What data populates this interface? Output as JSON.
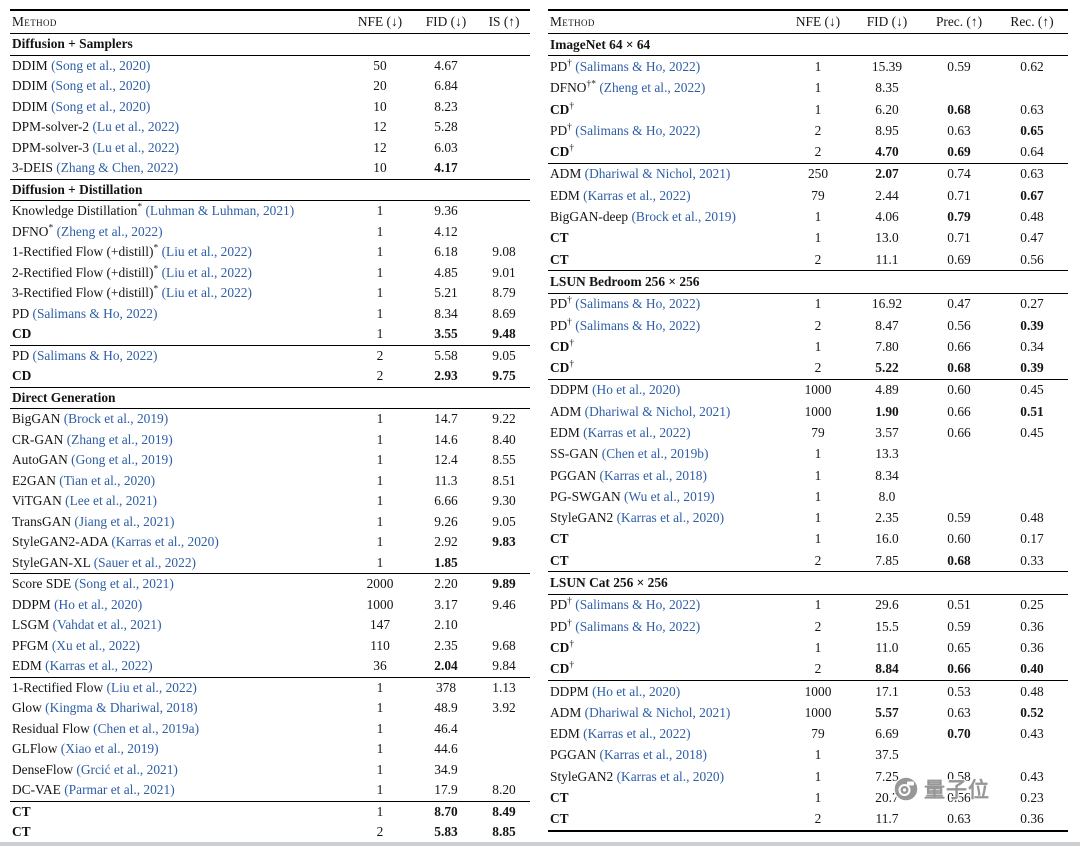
{
  "colors": {
    "citation": "#2e5ea7",
    "text": "#141414"
  },
  "watermark": {
    "text": "量子位",
    "icon": "qbitai-camera-logo",
    "color": "#8f8f8f"
  },
  "left": {
    "headers": {
      "method": "Method",
      "cols": [
        "NFE (↓)",
        "FID (↓)",
        "IS (↑)"
      ]
    },
    "sections": [
      {
        "title": "Diffusion + Samplers",
        "groups": [
          [
            {
              "n": "DDIM",
              "c": "Song et al., 2020",
              "v": [
                "50",
                "4.67",
                ""
              ]
            },
            {
              "n": "DDIM",
              "c": "Song et al., 2020",
              "v": [
                "20",
                "6.84",
                ""
              ]
            },
            {
              "n": "DDIM",
              "c": "Song et al., 2020",
              "v": [
                "10",
                "8.23",
                ""
              ]
            },
            {
              "n": "DPM-solver-2",
              "c": "Lu et al., 2022",
              "v": [
                "12",
                "5.28",
                ""
              ]
            },
            {
              "n": "DPM-solver-3",
              "c": "Lu et al., 2022",
              "v": [
                "12",
                "6.03",
                ""
              ]
            },
            {
              "n": "3-DEIS",
              "c": "Zhang & Chen, 2022",
              "v": [
                "10",
                "4.17",
                ""
              ],
              "b": [
                1
              ]
            }
          ]
        ]
      },
      {
        "title": "Diffusion + Distillation",
        "groups": [
          [
            {
              "n": "Knowledge Distillation",
              "s": "*",
              "c": "Luhman & Luhman, 2021",
              "v": [
                "1",
                "9.36",
                ""
              ]
            },
            {
              "n": "DFNO",
              "s": "*",
              "c": "Zheng et al., 2022",
              "v": [
                "1",
                "4.12",
                ""
              ]
            },
            {
              "n": "1-Rectified Flow (+distill)",
              "s": "*",
              "c": "Liu et al., 2022",
              "v": [
                "1",
                "6.18",
                "9.08"
              ]
            },
            {
              "n": "2-Rectified Flow (+distill)",
              "s": "*",
              "c": "Liu et al., 2022",
              "v": [
                "1",
                "4.85",
                "9.01"
              ]
            },
            {
              "n": "3-Rectified Flow (+distill)",
              "s": "*",
              "c": "Liu et al., 2022",
              "v": [
                "1",
                "5.21",
                "8.79"
              ]
            },
            {
              "n": "PD",
              "c": "Salimans & Ho, 2022",
              "v": [
                "1",
                "8.34",
                "8.69"
              ]
            },
            {
              "n": "CD",
              "nb": 1,
              "v": [
                "1",
                "3.55",
                "9.48"
              ],
              "b": [
                1,
                2
              ]
            }
          ],
          [
            {
              "n": "PD",
              "c": "Salimans & Ho, 2022",
              "v": [
                "2",
                "5.58",
                "9.05"
              ]
            },
            {
              "n": "CD",
              "nb": 1,
              "v": [
                "2",
                "2.93",
                "9.75"
              ],
              "b": [
                1,
                2
              ]
            }
          ]
        ]
      },
      {
        "title": "Direct Generation",
        "groups": [
          [
            {
              "n": "BigGAN",
              "c": "Brock et al., 2019",
              "v": [
                "1",
                "14.7",
                "9.22"
              ]
            },
            {
              "n": "CR-GAN",
              "c": "Zhang et al., 2019",
              "v": [
                "1",
                "14.6",
                "8.40"
              ]
            },
            {
              "n": "AutoGAN",
              "c": "Gong et al., 2019",
              "v": [
                "1",
                "12.4",
                "8.55"
              ]
            },
            {
              "n": "E2GAN",
              "c": "Tian et al., 2020",
              "v": [
                "1",
                "11.3",
                "8.51"
              ]
            },
            {
              "n": "ViTGAN",
              "c": "Lee et al., 2021",
              "v": [
                "1",
                "6.66",
                "9.30"
              ]
            },
            {
              "n": "TransGAN",
              "c": "Jiang et al., 2021",
              "v": [
                "1",
                "9.26",
                "9.05"
              ]
            },
            {
              "n": "StyleGAN2-ADA",
              "c": "Karras et al., 2020",
              "v": [
                "1",
                "2.92",
                "9.83"
              ],
              "b": [
                2
              ]
            },
            {
              "n": "StyleGAN-XL",
              "c": "Sauer et al., 2022",
              "v": [
                "1",
                "1.85",
                ""
              ],
              "b": [
                1
              ]
            }
          ],
          [
            {
              "n": "Score SDE",
              "c": "Song et al., 2021",
              "v": [
                "2000",
                "2.20",
                "9.89"
              ],
              "b": [
                2
              ]
            },
            {
              "n": "DDPM",
              "c": "Ho et al., 2020",
              "v": [
                "1000",
                "3.17",
                "9.46"
              ]
            },
            {
              "n": "LSGM",
              "c": "Vahdat et al., 2021",
              "v": [
                "147",
                "2.10",
                ""
              ]
            },
            {
              "n": "PFGM",
              "c": "Xu et al., 2022",
              "v": [
                "110",
                "2.35",
                "9.68"
              ]
            },
            {
              "n": "EDM",
              "c": "Karras et al., 2022",
              "v": [
                "36",
                "2.04",
                "9.84"
              ],
              "b": [
                1
              ]
            }
          ],
          [
            {
              "n": "1-Rectified Flow",
              "c": "Liu et al., 2022",
              "v": [
                "1",
                "378",
                "1.13"
              ]
            },
            {
              "n": "Glow",
              "c": "Kingma & Dhariwal, 2018",
              "v": [
                "1",
                "48.9",
                "3.92"
              ]
            },
            {
              "n": "Residual Flow",
              "c": "Chen et al., 2019a",
              "v": [
                "1",
                "46.4",
                ""
              ]
            },
            {
              "n": "GLFlow",
              "c": "Xiao et al., 2019",
              "v": [
                "1",
                "44.6",
                ""
              ]
            },
            {
              "n": "DenseFlow",
              "c": "Grcić et al., 2021",
              "v": [
                "1",
                "34.9",
                ""
              ]
            },
            {
              "n": "DC-VAE",
              "c": "Parmar et al., 2021",
              "v": [
                "1",
                "17.9",
                "8.20"
              ]
            }
          ],
          [
            {
              "n": "CT",
              "nb": 1,
              "v": [
                "1",
                "8.70",
                "8.49"
              ],
              "b": [
                1,
                2
              ]
            },
            {
              "n": "CT",
              "nb": 1,
              "v": [
                "2",
                "5.83",
                "8.85"
              ],
              "b": [
                1,
                2
              ]
            }
          ]
        ]
      }
    ]
  },
  "right": {
    "headers": {
      "method": "Method",
      "cols": [
        "NFE (↓)",
        "FID (↓)",
        "Prec. (↑)",
        "Rec. (↑)"
      ]
    },
    "sections": [
      {
        "title": "ImageNet 64 × 64",
        "groups": [
          [
            {
              "n": "PD",
              "s": "†",
              "c": "Salimans & Ho, 2022",
              "v": [
                "1",
                "15.39",
                "0.59",
                "0.62"
              ]
            },
            {
              "n": "DFNO",
              "s": "†*",
              "c": "Zheng et al., 2022",
              "v": [
                "1",
                "8.35",
                "",
                ""
              ]
            },
            {
              "n": "CD",
              "s": "†",
              "nb": 1,
              "v": [
                "1",
                "6.20",
                "0.68",
                "0.63"
              ],
              "b": [
                2
              ]
            },
            {
              "n": "PD",
              "s": "†",
              "c": "Salimans & Ho, 2022",
              "v": [
                "2",
                "8.95",
                "0.63",
                "0.65"
              ],
              "b": [
                3
              ]
            },
            {
              "n": "CD",
              "s": "†",
              "nb": 1,
              "v": [
                "2",
                "4.70",
                "0.69",
                "0.64"
              ],
              "b": [
                1,
                2
              ]
            }
          ],
          [
            {
              "n": "ADM",
              "c": "Dhariwal & Nichol, 2021",
              "v": [
                "250",
                "2.07",
                "0.74",
                "0.63"
              ],
              "b": [
                1
              ]
            },
            {
              "n": "EDM",
              "c": "Karras et al., 2022",
              "v": [
                "79",
                "2.44",
                "0.71",
                "0.67"
              ],
              "b": [
                3
              ]
            },
            {
              "n": "BigGAN-deep",
              "c": "Brock et al., 2019",
              "v": [
                "1",
                "4.06",
                "0.79",
                "0.48"
              ],
              "b": [
                2
              ]
            },
            {
              "n": "CT",
              "nb": 1,
              "v": [
                "1",
                "13.0",
                "0.71",
                "0.47"
              ]
            },
            {
              "n": "CT",
              "nb": 1,
              "v": [
                "2",
                "11.1",
                "0.69",
                "0.56"
              ]
            }
          ]
        ]
      },
      {
        "title": "LSUN Bedroom 256 × 256",
        "groups": [
          [
            {
              "n": "PD",
              "s": "†",
              "c": "Salimans & Ho, 2022",
              "v": [
                "1",
                "16.92",
                "0.47",
                "0.27"
              ]
            },
            {
              "n": "PD",
              "s": "†",
              "c": "Salimans & Ho, 2022",
              "v": [
                "2",
                "8.47",
                "0.56",
                "0.39"
              ],
              "b": [
                3
              ]
            },
            {
              "n": "CD",
              "s": "†",
              "nb": 1,
              "v": [
                "1",
                "7.80",
                "0.66",
                "0.34"
              ]
            },
            {
              "n": "CD",
              "s": "†",
              "nb": 1,
              "v": [
                "2",
                "5.22",
                "0.68",
                "0.39"
              ],
              "b": [
                1,
                2,
                3
              ]
            }
          ],
          [
            {
              "n": "DDPM",
              "c": "Ho et al., 2020",
              "v": [
                "1000",
                "4.89",
                "0.60",
                "0.45"
              ]
            },
            {
              "n": "ADM",
              "c": "Dhariwal & Nichol, 2021",
              "v": [
                "1000",
                "1.90",
                "0.66",
                "0.51"
              ],
              "b": [
                1,
                3
              ]
            },
            {
              "n": "EDM",
              "c": "Karras et al., 2022",
              "v": [
                "79",
                "3.57",
                "0.66",
                "0.45"
              ]
            },
            {
              "n": "SS-GAN",
              "c": "Chen et al., 2019b",
              "v": [
                "1",
                "13.3",
                "",
                ""
              ]
            },
            {
              "n": "PGGAN",
              "c": "Karras et al., 2018",
              "v": [
                "1",
                "8.34",
                "",
                ""
              ]
            },
            {
              "n": "PG-SWGAN",
              "c": "Wu et al., 2019",
              "v": [
                "1",
                "8.0",
                "",
                ""
              ]
            },
            {
              "n": "StyleGAN2",
              "c": "Karras et al., 2020",
              "v": [
                "1",
                "2.35",
                "0.59",
                "0.48"
              ]
            },
            {
              "n": "CT",
              "nb": 1,
              "v": [
                "1",
                "16.0",
                "0.60",
                "0.17"
              ]
            },
            {
              "n": "CT",
              "nb": 1,
              "v": [
                "2",
                "7.85",
                "0.68",
                "0.33"
              ],
              "b": [
                2
              ]
            }
          ]
        ]
      },
      {
        "title": "LSUN Cat 256 × 256",
        "groups": [
          [
            {
              "n": "PD",
              "s": "†",
              "c": "Salimans & Ho, 2022",
              "v": [
                "1",
                "29.6",
                "0.51",
                "0.25"
              ]
            },
            {
              "n": "PD",
              "s": "†",
              "c": "Salimans & Ho, 2022",
              "v": [
                "2",
                "15.5",
                "0.59",
                "0.36"
              ]
            },
            {
              "n": "CD",
              "s": "†",
              "nb": 1,
              "v": [
                "1",
                "11.0",
                "0.65",
                "0.36"
              ]
            },
            {
              "n": "CD",
              "s": "†",
              "nb": 1,
              "v": [
                "2",
                "8.84",
                "0.66",
                "0.40"
              ],
              "b": [
                1,
                2,
                3
              ]
            }
          ],
          [
            {
              "n": "DDPM",
              "c": "Ho et al., 2020",
              "v": [
                "1000",
                "17.1",
                "0.53",
                "0.48"
              ]
            },
            {
              "n": "ADM",
              "c": "Dhariwal & Nichol, 2021",
              "v": [
                "1000",
                "5.57",
                "0.63",
                "0.52"
              ],
              "b": [
                1,
                3
              ]
            },
            {
              "n": "EDM",
              "c": "Karras et al., 2022",
              "v": [
                "79",
                "6.69",
                "0.70",
                "0.43"
              ],
              "b": [
                2
              ]
            },
            {
              "n": "PGGAN",
              "c": "Karras et al., 2018",
              "v": [
                "1",
                "37.5",
                "",
                ""
              ]
            },
            {
              "n": "StyleGAN2",
              "c": "Karras et al., 2020",
              "v": [
                "1",
                "7.25",
                "0.58",
                "0.43"
              ]
            },
            {
              "n": "CT",
              "nb": 1,
              "v": [
                "1",
                "20.7",
                "0.56",
                "0.23"
              ]
            },
            {
              "n": "CT",
              "nb": 1,
              "v": [
                "2",
                "11.7",
                "0.63",
                "0.36"
              ]
            }
          ]
        ]
      }
    ]
  }
}
